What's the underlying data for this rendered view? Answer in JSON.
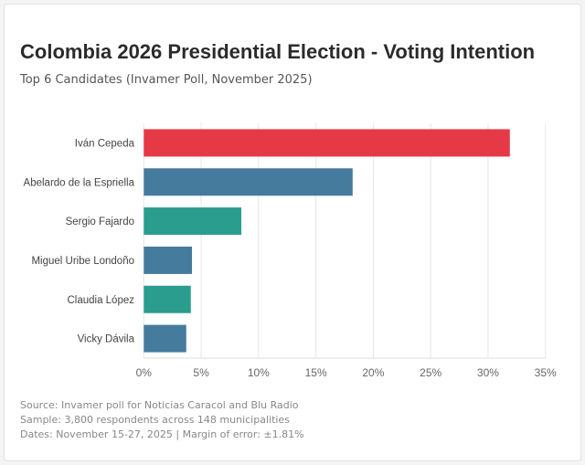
{
  "title": "Colombia 2026 Presidential Election - Voting Intention",
  "subtitle": "Top 6 Candidates (Invamer Poll, November 2025)",
  "footer": [
    "Source: Invamer poll for Noticias Caracol and Blu Radio",
    "Sample: 3,800 respondents across 148 municipalities",
    "Dates: November 15-27, 2025 | Margin of error: ±1.81%"
  ],
  "chart_data": {
    "type": "bar",
    "orientation": "horizontal",
    "categories": [
      "Iván Cepeda",
      "Abelardo de la Espriella",
      "Sergio Fajardo",
      "Miguel Uribe Londoño",
      "Claudia López",
      "Vicky Dávila"
    ],
    "values": [
      31.9,
      18.2,
      8.5,
      4.2,
      4.1,
      3.7
    ],
    "colors": [
      "#e63946",
      "#457b9d",
      "#2a9d8f",
      "#457b9d",
      "#2a9d8f",
      "#457b9d"
    ],
    "xlim": [
      0,
      35
    ],
    "xticks": [
      "0%",
      "5%",
      "10%",
      "15%",
      "20%",
      "25%",
      "30%",
      "35%"
    ],
    "grid": true,
    "xlabel": "",
    "ylabel": ""
  }
}
